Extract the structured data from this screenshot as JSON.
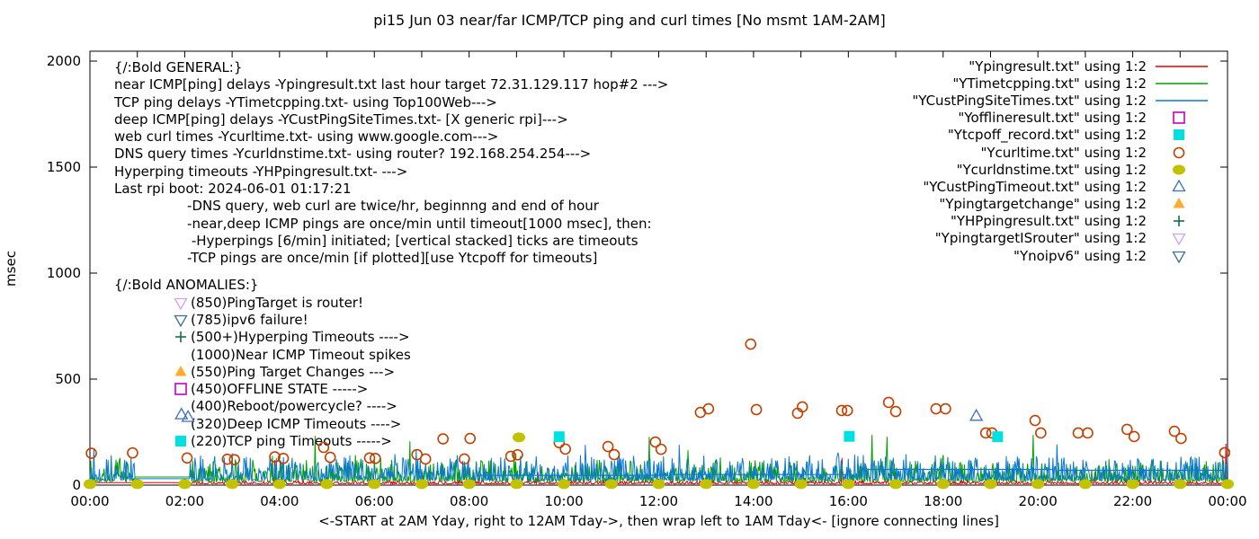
{
  "title": "pi15 Jun 03  near/far ICMP/TCP ping and curl times [No msmt 1AM-2AM]",
  "axes": {
    "ylabel": "msec",
    "yticks": [
      0,
      500,
      1000,
      1500,
      2000
    ],
    "xtick_labels": [
      "00:00",
      "02:00",
      "04:00",
      "06:00",
      "08:00",
      "10:00",
      "12:00",
      "14:00",
      "16:00",
      "18:00",
      "20:00",
      "22:00",
      "00:00"
    ],
    "xlabel_caption": "<-START at 2AM Yday, right to 12AM Tday->, then wrap left to 1AM Tday<- [ignore connecting lines]",
    "grid": "off",
    "legend_position": "top-right"
  },
  "annotations": {
    "general_lines": [
      "{/:Bold GENERAL:}",
      "near ICMP[ping] delays -Ypingresult.txt last hour target 72.31.129.117 hop#2 --->",
      "TCP ping delays -YTimetcpping.txt- using Top100Web--->",
      "deep ICMP[ping] delays -YCustPingSiteTimes.txt- [X generic rpi]--->",
      "web curl times -Ycurltime.txt- using www.google.com--->",
      "DNS query times -Ycurldnstime.txt- using router? 192.168.254.254--->",
      "Hyperping timeouts -YHPpingresult.txt- --->",
      "Last rpi boot: 2024-06-01 01:17:21",
      "                 -DNS query, web curl are twice/hr, beginnng and end of hour",
      "                 -near,deep ICMP pings are once/min until timeout[1000 msec], then:",
      "                  -Hyperpings [6/min] initiated; [vertical stacked] ticks are timeouts",
      "                 -TCP pings are once/min [if plotted][use Ytcpoff for timeouts]"
    ],
    "anomalies_header": "{/:Bold ANOMALIES:}",
    "anomalies_lines": [
      {
        "marker": "triangle-down-open",
        "color": "#cfa3ef",
        "text": "(850)PingTarget is router!"
      },
      {
        "marker": "triangle-down-open",
        "color": "#3d708f",
        "text": "(785)ipv6 failure!"
      },
      {
        "marker": "plus",
        "color": "#1a6b4a",
        "text": "(500+)Hyperping Timeouts ---->"
      },
      {
        "marker": "none",
        "color": "",
        "text": "(1000)Near ICMP Timeout spikes"
      },
      {
        "marker": "triangle-up-filled",
        "color": "#ffab2e",
        "text": "(550)Ping Target Changes --->"
      },
      {
        "marker": "square-open",
        "color": "#c400c4",
        "text": "(450)OFFLINE STATE ----->"
      },
      {
        "marker": "none",
        "color": "",
        "text": "(400)Reboot/powercycle? ---->"
      },
      {
        "marker": "none",
        "color": "",
        "text": "(320)Deep ICMP Timeouts ---->"
      },
      {
        "marker": "square-filled",
        "color": "#00e0e0",
        "text": "(220)TCP ping Timeouts ----->"
      }
    ]
  },
  "legend": [
    {
      "label": "\"Ypingresult.txt\" using 1:2",
      "sample": "line",
      "color": "#e60000"
    },
    {
      "label": "\"YTimetcpping.txt\" using 1:2",
      "sample": "line",
      "color": "#00a000"
    },
    {
      "label": "\"YCustPingSiteTimes.txt\" using 1:2",
      "sample": "line",
      "color": "#0d78d2"
    },
    {
      "label": "\"Yofflineresult.txt\" using 1:2",
      "sample": "square-open",
      "color": "#c400c4"
    },
    {
      "label": "\"Ytcpoff_record.txt\" using 1:2",
      "sample": "square-filled",
      "color": "#00e0e0"
    },
    {
      "label": "\"Ycurltime.txt\" using 1:2",
      "sample": "circle-open",
      "color": "#c04000"
    },
    {
      "label": "\"Ycurldnstime.txt\" using 1:2",
      "sample": "circle-filled",
      "color": "#c2c200"
    },
    {
      "label": "\"YCustPingTimeout.txt\" using 1:2",
      "sample": "triangle-up-open",
      "color": "#3d6dc4"
    },
    {
      "label": "\"Ypingtargetchange\" using 1:2",
      "sample": "triangle-up-filled",
      "color": "#ffab2e"
    },
    {
      "label": "\"YHPpingresult.txt\" using 1:2",
      "sample": "plus",
      "color": "#1a6b4a"
    },
    {
      "label": "\"YpingtargetISrouter\" using 1:2",
      "sample": "triangle-down-open",
      "color": "#cfa3ef"
    },
    {
      "label": "\"Ynoipv6\" using 1:2",
      "sample": "triangle-down-open",
      "color": "#3d708f"
    }
  ],
  "chart_data": {
    "type": "line+scatter",
    "x_unit": "hours",
    "xrange_hours": [
      0,
      24
    ],
    "yrange_msec": [
      0,
      2047
    ],
    "series": [
      {
        "name": "Ypingresult",
        "style": "line",
        "color": "#e60000",
        "baseline_msec": 6,
        "noise_amp_msec": 16,
        "seed": 3,
        "gap_flat": {
          "from": 0.0,
          "to": 2.1,
          "value": 12
        },
        "spikes": [
          [
            3.9,
            118
          ],
          [
            9.45,
            62
          ],
          [
            15.86,
            128
          ],
          [
            21.2,
            60
          ],
          [
            23.97,
            195
          ]
        ]
      },
      {
        "name": "YTimetcpping",
        "style": "line",
        "color": "#00a000",
        "baseline_msec": 16,
        "noise_amp_msec": 105,
        "seed": 7,
        "gap_flat": {
          "from": 0.95,
          "to": 2.1,
          "value": 38
        },
        "spikes": [
          [
            0.55,
            120
          ],
          [
            2.6,
            112
          ],
          [
            4.75,
            232
          ],
          [
            5.6,
            142
          ],
          [
            6.75,
            207
          ],
          [
            8.95,
            152
          ],
          [
            11.8,
            228
          ],
          [
            13.3,
            130
          ],
          [
            16.5,
            237
          ],
          [
            16.82,
            228
          ],
          [
            18.0,
            142
          ],
          [
            19.9,
            237
          ],
          [
            21.5,
            122
          ]
        ]
      },
      {
        "name": "YCustPingSiteTimes",
        "style": "line",
        "color": "#0d78d2",
        "baseline_msec": 22,
        "noise_amp_msec": 120,
        "seed": 13,
        "gap_flat": {
          "from": 0.95,
          "to": 2.1,
          "value": 30
        },
        "flat_segments": [
          [
            8.2,
            12.2,
            46
          ],
          [
            12.3,
            16.0,
            50
          ],
          [
            16.3,
            20.3,
            74
          ],
          [
            20.4,
            23.9,
            70
          ]
        ],
        "spikes": [
          [
            0.08,
            168
          ],
          [
            0.35,
            122
          ],
          [
            3.3,
            132
          ],
          [
            5.2,
            122
          ],
          [
            7.6,
            126
          ],
          [
            10.45,
            190
          ],
          [
            12.6,
            122
          ],
          [
            14.5,
            116
          ],
          [
            17.3,
            112
          ],
          [
            20.4,
            192
          ],
          [
            22.6,
            116
          ]
        ]
      },
      {
        "name": "Ycurltime",
        "style": "scatter",
        "marker": "circle-open",
        "color": "#c04000",
        "points": [
          [
            0.03,
            150
          ],
          [
            0.9,
            152
          ],
          [
            2.05,
            128
          ],
          [
            2.9,
            122
          ],
          [
            3.05,
            120
          ],
          [
            3.9,
            133
          ],
          [
            4.08,
            126
          ],
          [
            4.93,
            178
          ],
          [
            5.07,
            131
          ],
          [
            5.9,
            128
          ],
          [
            6.02,
            126
          ],
          [
            6.9,
            144
          ],
          [
            7.08,
            123
          ],
          [
            7.45,
            218
          ],
          [
            7.9,
            123
          ],
          [
            8.02,
            220
          ],
          [
            8.88,
            136
          ],
          [
            9.02,
            143
          ],
          [
            9.9,
            200
          ],
          [
            10.03,
            170
          ],
          [
            10.93,
            182
          ],
          [
            11.06,
            144
          ],
          [
            11.93,
            203
          ],
          [
            12.05,
            169
          ],
          [
            12.88,
            343
          ],
          [
            13.05,
            360
          ],
          [
            13.94,
            665
          ],
          [
            14.06,
            356
          ],
          [
            14.93,
            339
          ],
          [
            15.03,
            369
          ],
          [
            15.86,
            352
          ],
          [
            15.98,
            352
          ],
          [
            16.85,
            390
          ],
          [
            17.0,
            347
          ],
          [
            17.85,
            360
          ],
          [
            18.05,
            360
          ],
          [
            18.9,
            246
          ],
          [
            19.03,
            246
          ],
          [
            19.94,
            305
          ],
          [
            20.06,
            246
          ],
          [
            20.85,
            246
          ],
          [
            21.05,
            246
          ],
          [
            21.88,
            263
          ],
          [
            22.03,
            229
          ],
          [
            22.88,
            254
          ],
          [
            23.02,
            220
          ],
          [
            23.94,
            153
          ]
        ]
      },
      {
        "name": "Ycurldnstime",
        "style": "scatter",
        "marker": "circle-filled",
        "color": "#c2c200",
        "hourly_points_msec": 5,
        "hours": [
          0,
          1,
          2,
          3,
          4,
          5,
          6,
          7,
          8,
          9,
          10,
          11,
          12,
          13,
          14,
          15,
          16,
          17,
          18,
          19,
          20,
          21,
          22,
          23,
          24
        ],
        "extra_points": [
          [
            9.05,
            225
          ]
        ]
      },
      {
        "name": "Ytcpoff_record",
        "style": "scatter",
        "marker": "square-filled",
        "color": "#00e0e0",
        "points": [
          [
            9.9,
            228
          ],
          [
            16.02,
            230
          ],
          [
            19.15,
            228
          ]
        ]
      },
      {
        "name": "YCustPingTimeout",
        "style": "scatter",
        "marker": "triangle-up-open",
        "color": "#3d6dc4",
        "points": [
          [
            1.93,
            332
          ],
          [
            2.07,
            320
          ],
          [
            18.7,
            325
          ]
        ]
      },
      {
        "name": "Yofflineresult",
        "style": "scatter",
        "marker": "square-open",
        "color": "#c400c4",
        "points": []
      },
      {
        "name": "Ypingtargetchange",
        "style": "scatter",
        "marker": "triangle-up-filled",
        "color": "#ffab2e",
        "points": []
      },
      {
        "name": "YHPpingresult",
        "style": "scatter",
        "marker": "plus",
        "color": "#1a6b4a",
        "points": []
      },
      {
        "name": "YpingtargetISrouter",
        "style": "scatter",
        "marker": "triangle-down-open",
        "color": "#cfa3ef",
        "points": []
      },
      {
        "name": "Ynoipv6",
        "style": "scatter",
        "marker": "triangle-down-open",
        "color": "#3d708f",
        "points": []
      }
    ]
  }
}
